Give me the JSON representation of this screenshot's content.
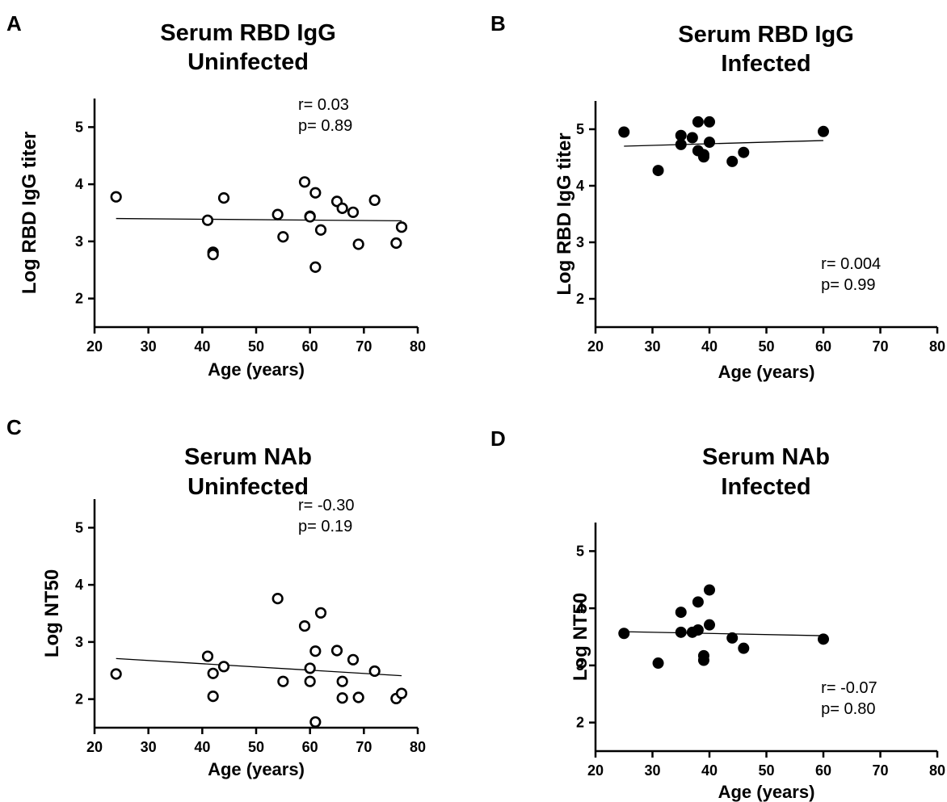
{
  "chart_data": [
    {
      "panel_letter": "A",
      "type": "scatter",
      "title": "Serum RBD IgG",
      "subtitle": "Uninfected",
      "xlabel": "Age (years)",
      "ylabel": "Log RBD IgG titer",
      "xlim": [
        20,
        80
      ],
      "ylim": [
        1.5,
        5.5
      ],
      "xticks": [
        20,
        30,
        40,
        50,
        60,
        70,
        80
      ],
      "yticks": [
        2,
        3,
        4,
        5
      ],
      "marker": "open-circle",
      "annotation": {
        "r": "r= 0.03",
        "p": "p= 0.89",
        "placement": "top-right"
      },
      "trendline": {
        "x": [
          24,
          77
        ],
        "y": [
          3.4,
          3.36
        ]
      },
      "points": [
        {
          "x": 24,
          "y": 3.78
        },
        {
          "x": 41,
          "y": 3.37
        },
        {
          "x": 42,
          "y": 2.81
        },
        {
          "x": 42,
          "y": 2.77
        },
        {
          "x": 44,
          "y": 3.76
        },
        {
          "x": 54,
          "y": 3.47
        },
        {
          "x": 55,
          "y": 3.08
        },
        {
          "x": 59,
          "y": 4.04
        },
        {
          "x": 60,
          "y": 3.44
        },
        {
          "x": 60,
          "y": 3.43
        },
        {
          "x": 61,
          "y": 3.85
        },
        {
          "x": 61,
          "y": 2.55
        },
        {
          "x": 62,
          "y": 3.2
        },
        {
          "x": 65,
          "y": 3.7
        },
        {
          "x": 66,
          "y": 3.58
        },
        {
          "x": 68,
          "y": 3.51
        },
        {
          "x": 69,
          "y": 2.95
        },
        {
          "x": 72,
          "y": 3.72
        },
        {
          "x": 76,
          "y": 2.97
        },
        {
          "x": 77,
          "y": 3.25
        }
      ]
    },
    {
      "panel_letter": "B",
      "type": "scatter",
      "title": "Serum RBD IgG",
      "subtitle": "Infected",
      "xlabel": "Age (years)",
      "ylabel": "Log RBD IgG titer",
      "xlim": [
        20,
        80
      ],
      "ylim": [
        1.5,
        5.5
      ],
      "xticks": [
        20,
        30,
        40,
        50,
        60,
        70,
        80
      ],
      "yticks": [
        2,
        3,
        4,
        5
      ],
      "marker": "filled-circle",
      "annotation": {
        "r": "r= 0.004",
        "p": "p= 0.99",
        "placement": "bottom-right"
      },
      "trendline": {
        "x": [
          25,
          60
        ],
        "y": [
          4.7,
          4.8
        ]
      },
      "points": [
        {
          "x": 25,
          "y": 4.95
        },
        {
          "x": 31,
          "y": 4.27
        },
        {
          "x": 35,
          "y": 4.89
        },
        {
          "x": 35,
          "y": 4.73
        },
        {
          "x": 37,
          "y": 4.85
        },
        {
          "x": 38,
          "y": 5.13
        },
        {
          "x": 38,
          "y": 4.62
        },
        {
          "x": 39,
          "y": 4.55
        },
        {
          "x": 39,
          "y": 4.51
        },
        {
          "x": 40,
          "y": 5.13
        },
        {
          "x": 40,
          "y": 4.77
        },
        {
          "x": 44,
          "y": 4.43
        },
        {
          "x": 46,
          "y": 4.59
        },
        {
          "x": 60,
          "y": 4.96
        }
      ]
    },
    {
      "panel_letter": "C",
      "type": "scatter",
      "title": "Serum NAb",
      "subtitle": "Uninfected",
      "xlabel": "Age (years)",
      "ylabel": "Log NT50",
      "xlim": [
        20,
        80
      ],
      "ylim": [
        1.5,
        5.5
      ],
      "xticks": [
        20,
        30,
        40,
        50,
        60,
        70,
        80
      ],
      "yticks": [
        2,
        3,
        4,
        5
      ],
      "marker": "open-circle",
      "annotation": {
        "r": "r= -0.30",
        "p": "p= 0.19",
        "placement": "top-right"
      },
      "trendline": {
        "x": [
          24,
          77
        ],
        "y": [
          2.71,
          2.41
        ]
      },
      "points": [
        {
          "x": 24,
          "y": 2.44
        },
        {
          "x": 41,
          "y": 2.75
        },
        {
          "x": 42,
          "y": 2.45
        },
        {
          "x": 42,
          "y": 2.05
        },
        {
          "x": 44,
          "y": 2.57
        },
        {
          "x": 54,
          "y": 3.76
        },
        {
          "x": 55,
          "y": 2.31
        },
        {
          "x": 59,
          "y": 3.28
        },
        {
          "x": 60,
          "y": 2.54
        },
        {
          "x": 60,
          "y": 2.31
        },
        {
          "x": 61,
          "y": 2.84
        },
        {
          "x": 61,
          "y": 1.6
        },
        {
          "x": 62,
          "y": 3.51
        },
        {
          "x": 65,
          "y": 2.85
        },
        {
          "x": 66,
          "y": 2.31
        },
        {
          "x": 66,
          "y": 2.02
        },
        {
          "x": 68,
          "y": 2.69
        },
        {
          "x": 69,
          "y": 2.03
        },
        {
          "x": 72,
          "y": 2.49
        },
        {
          "x": 76,
          "y": 2.01
        },
        {
          "x": 77,
          "y": 2.1
        }
      ]
    },
    {
      "panel_letter": "D",
      "type": "scatter",
      "title": "Serum NAb",
      "subtitle": "Infected",
      "xlabel": "Age (years)",
      "ylabel": "Log NT50",
      "xlim": [
        20,
        80
      ],
      "ylim": [
        1.5,
        5.5
      ],
      "xticks": [
        20,
        30,
        40,
        50,
        60,
        70,
        80
      ],
      "yticks": [
        2,
        3,
        4,
        5
      ],
      "marker": "filled-circle",
      "annotation": {
        "r": "r= -0.07",
        "p": "p= 0.80",
        "placement": "bottom-right"
      },
      "trendline": {
        "x": [
          25,
          60
        ],
        "y": [
          3.59,
          3.52
        ]
      },
      "points": [
        {
          "x": 25,
          "y": 3.56
        },
        {
          "x": 31,
          "y": 3.04
        },
        {
          "x": 35,
          "y": 3.93
        },
        {
          "x": 35,
          "y": 3.58
        },
        {
          "x": 37,
          "y": 3.58
        },
        {
          "x": 38,
          "y": 4.11
        },
        {
          "x": 38,
          "y": 3.62
        },
        {
          "x": 39,
          "y": 3.17
        },
        {
          "x": 39,
          "y": 3.09
        },
        {
          "x": 40,
          "y": 4.32
        },
        {
          "x": 40,
          "y": 3.71
        },
        {
          "x": 44,
          "y": 3.48
        },
        {
          "x": 46,
          "y": 3.3
        },
        {
          "x": 60,
          "y": 3.46
        }
      ]
    }
  ]
}
